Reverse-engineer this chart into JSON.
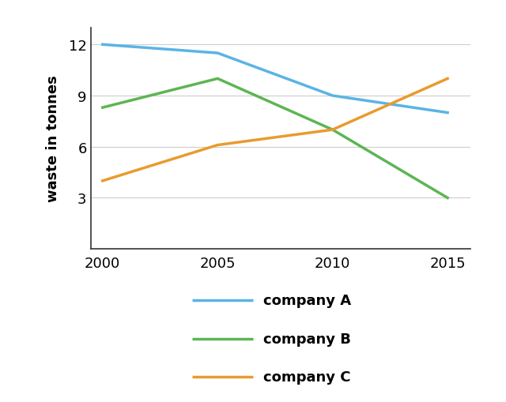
{
  "years": [
    2000,
    2005,
    2010,
    2015
  ],
  "company_A": [
    12,
    11.5,
    9,
    8
  ],
  "company_B": [
    8.3,
    10,
    7,
    3
  ],
  "company_C": [
    4,
    6.1,
    7,
    10
  ],
  "color_A": "#5ab4e5",
  "color_B": "#5db554",
  "color_C": "#e89b2f",
  "ylabel": "waste in tonnes",
  "yticks": [
    3,
    6,
    9,
    12
  ],
  "xticks": [
    2000,
    2005,
    2010,
    2015
  ],
  "ylim": [
    0,
    13
  ],
  "xlim": [
    1999.5,
    2016
  ],
  "legend_labels": [
    "company A",
    "company B",
    "company C"
  ],
  "line_width": 2.5,
  "font_size_ticks": 13,
  "font_size_legend": 13,
  "font_size_ylabel": 13
}
